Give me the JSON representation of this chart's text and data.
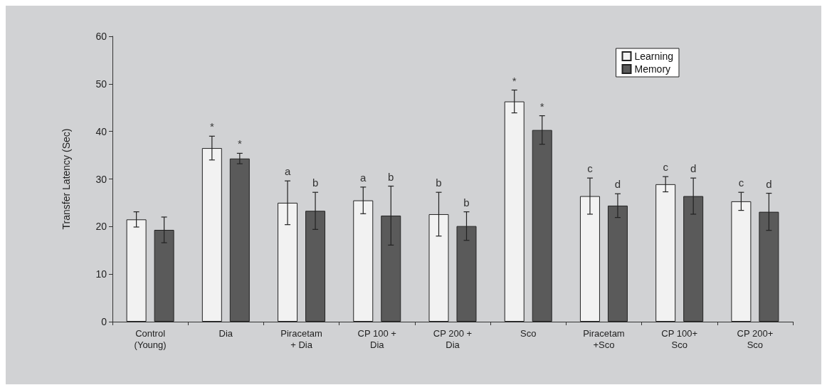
{
  "chart_data": {
    "type": "bar",
    "ylabel": "Transfer Latency (Sec)",
    "categories": [
      "Control\n(Young)",
      "Dia",
      "Piracetam\n+ Dia",
      "CP 100 +\nDia",
      "CP 200 +\nDia",
      "Sco",
      "Piracetam\n+Sco",
      "CP 100+\nSco",
      "CP 200+\nSco"
    ],
    "series": [
      {
        "name": "Learning",
        "color": "#f2f2f2",
        "values": [
          21.5,
          36.5,
          25.0,
          25.5,
          22.6,
          46.3,
          26.4,
          28.9,
          25.3
        ],
        "errors": [
          1.6,
          2.5,
          4.6,
          2.8,
          4.6,
          2.4,
          3.8,
          1.6,
          1.9
        ],
        "value_labels": [
          null,
          "*",
          "a",
          "a",
          "b",
          "*",
          "c",
          "c",
          "c"
        ]
      },
      {
        "name": "Memory",
        "color": "#5a5a5a",
        "values": [
          19.3,
          34.3,
          23.3,
          22.3,
          20.1,
          40.3,
          24.4,
          26.4,
          23.1
        ],
        "errors": [
          2.7,
          1.1,
          3.9,
          6.2,
          3.0,
          3.0,
          2.5,
          3.8,
          3.9
        ],
        "value_labels": [
          null,
          "*",
          "b",
          "b",
          "b",
          "*",
          "d",
          "d",
          "d"
        ]
      }
    ],
    "ylim": [
      0,
      60
    ],
    "yticks": [
      0,
      10,
      20,
      30,
      40,
      50,
      60
    ],
    "grid": false,
    "legend": "top right"
  }
}
